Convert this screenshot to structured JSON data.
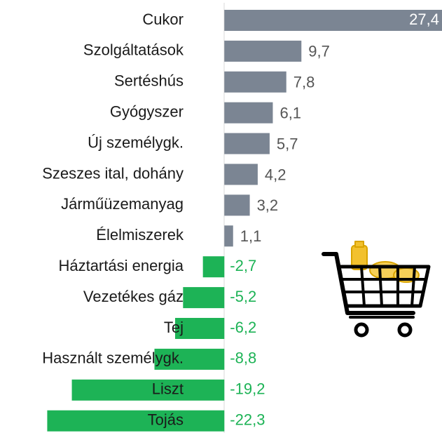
{
  "chart_data": {
    "type": "hbar",
    "categories": [
      "Cukor",
      "Szolgáltatások",
      "Sertéshús",
      "Gyógyszer",
      "Új személygk.",
      "Szeszes ital, dohány",
      "Járműüzemanyag",
      "Élelmiszerek",
      "Háztartási energia",
      "Vezetékes gáz",
      "Tej",
      "Használt személygk.",
      "Liszt",
      "Tojás"
    ],
    "values": [
      27.4,
      9.7,
      7.8,
      6.1,
      5.7,
      4.2,
      3.2,
      1.1,
      -2.7,
      -5.2,
      -6.2,
      -8.8,
      -19.2,
      -22.3
    ],
    "value_labels": [
      "27,4",
      "9,7",
      "7,8",
      "6,1",
      "5,7",
      "4,2",
      "3,2",
      "1,1",
      "-2,7",
      "-5,2",
      "-6,2",
      "-8,8",
      "-19,2",
      "-22,3"
    ],
    "colors": [
      "#7b8593",
      "#7b8593",
      "#7b8593",
      "#7b8593",
      "#7b8593",
      "#7b8593",
      "#7b8593",
      "#7b8593",
      "#1db356",
      "#1db356",
      "#1db356",
      "#1db356",
      "#1db356",
      "#1db356"
    ],
    "xlim": [
      -22.6,
      27.4
    ]
  }
}
